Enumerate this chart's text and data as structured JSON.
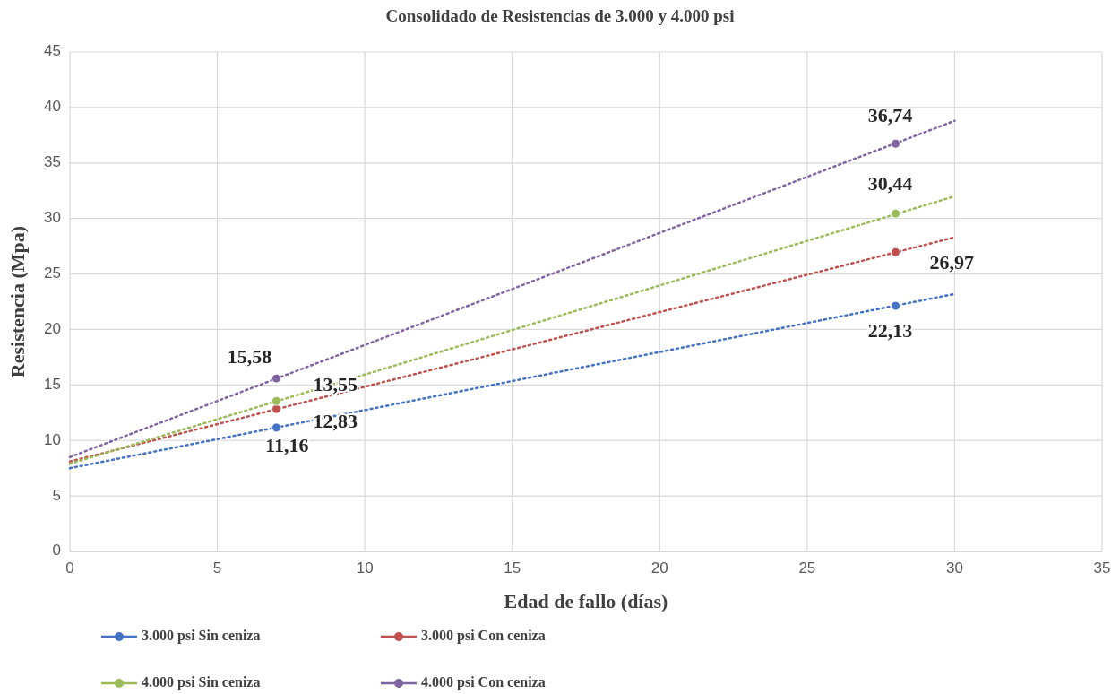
{
  "chart_data": {
    "type": "scatter",
    "title": "Consolidado de Resistencias de 3.000 y 4.000 psi",
    "xlabel": "Edad de fallo (días)",
    "ylabel": "Resistencia (Mpa)",
    "xlim": [
      0,
      35
    ],
    "xticks": [
      0,
      5,
      10,
      15,
      20,
      25,
      30,
      35
    ],
    "ylim": [
      0,
      45
    ],
    "yticks": [
      0,
      5,
      10,
      15,
      20,
      25,
      30,
      35,
      40,
      45
    ],
    "grid": true,
    "legend": "bottom",
    "marker": "circle",
    "series": [
      {
        "name": "3.000 psi Sin ceniza",
        "color": "#4472c4",
        "x": [
          7,
          28
        ],
        "values": [
          11.16,
          22.13
        ],
        "value_labels": [
          "11,16",
          "22,13"
        ]
      },
      {
        "name": "3.000 psi Con ceniza",
        "color": "#c0504d",
        "x": [
          7,
          28
        ],
        "values": [
          12.83,
          26.97
        ],
        "value_labels": [
          "12,83",
          "26,97"
        ]
      },
      {
        "name": "4.000 psi Sin ceniza",
        "color": "#9bbb59",
        "x": [
          7,
          28
        ],
        "values": [
          13.55,
          30.44
        ],
        "value_labels": [
          "13,55",
          "30,44"
        ]
      },
      {
        "name": "4.000 psi Con ceniza",
        "color": "#8064a2",
        "x": [
          7,
          28
        ],
        "values": [
          15.58,
          36.74
        ],
        "value_labels": [
          "15,58",
          "36,74"
        ]
      },
      {
        "type": "line",
        "color": "#4472c4",
        "x": [
          0,
          30
        ],
        "values": [
          7.5,
          23.2
        ],
        "line_style": "dotted",
        "marker": "none"
      },
      {
        "type": "line",
        "color": "#c0504d",
        "x": [
          0,
          30
        ],
        "values": [
          8.1,
          28.3
        ],
        "line_style": "dotted",
        "marker": "none"
      },
      {
        "type": "line",
        "color": "#9bbb59",
        "x": [
          0,
          30
        ],
        "values": [
          7.9,
          32.0
        ],
        "line_style": "dotted",
        "marker": "none"
      },
      {
        "type": "line",
        "color": "#8064a2",
        "x": [
          0,
          30
        ],
        "values": [
          8.5,
          38.8
        ],
        "line_style": "dotted",
        "marker": "none"
      }
    ]
  }
}
